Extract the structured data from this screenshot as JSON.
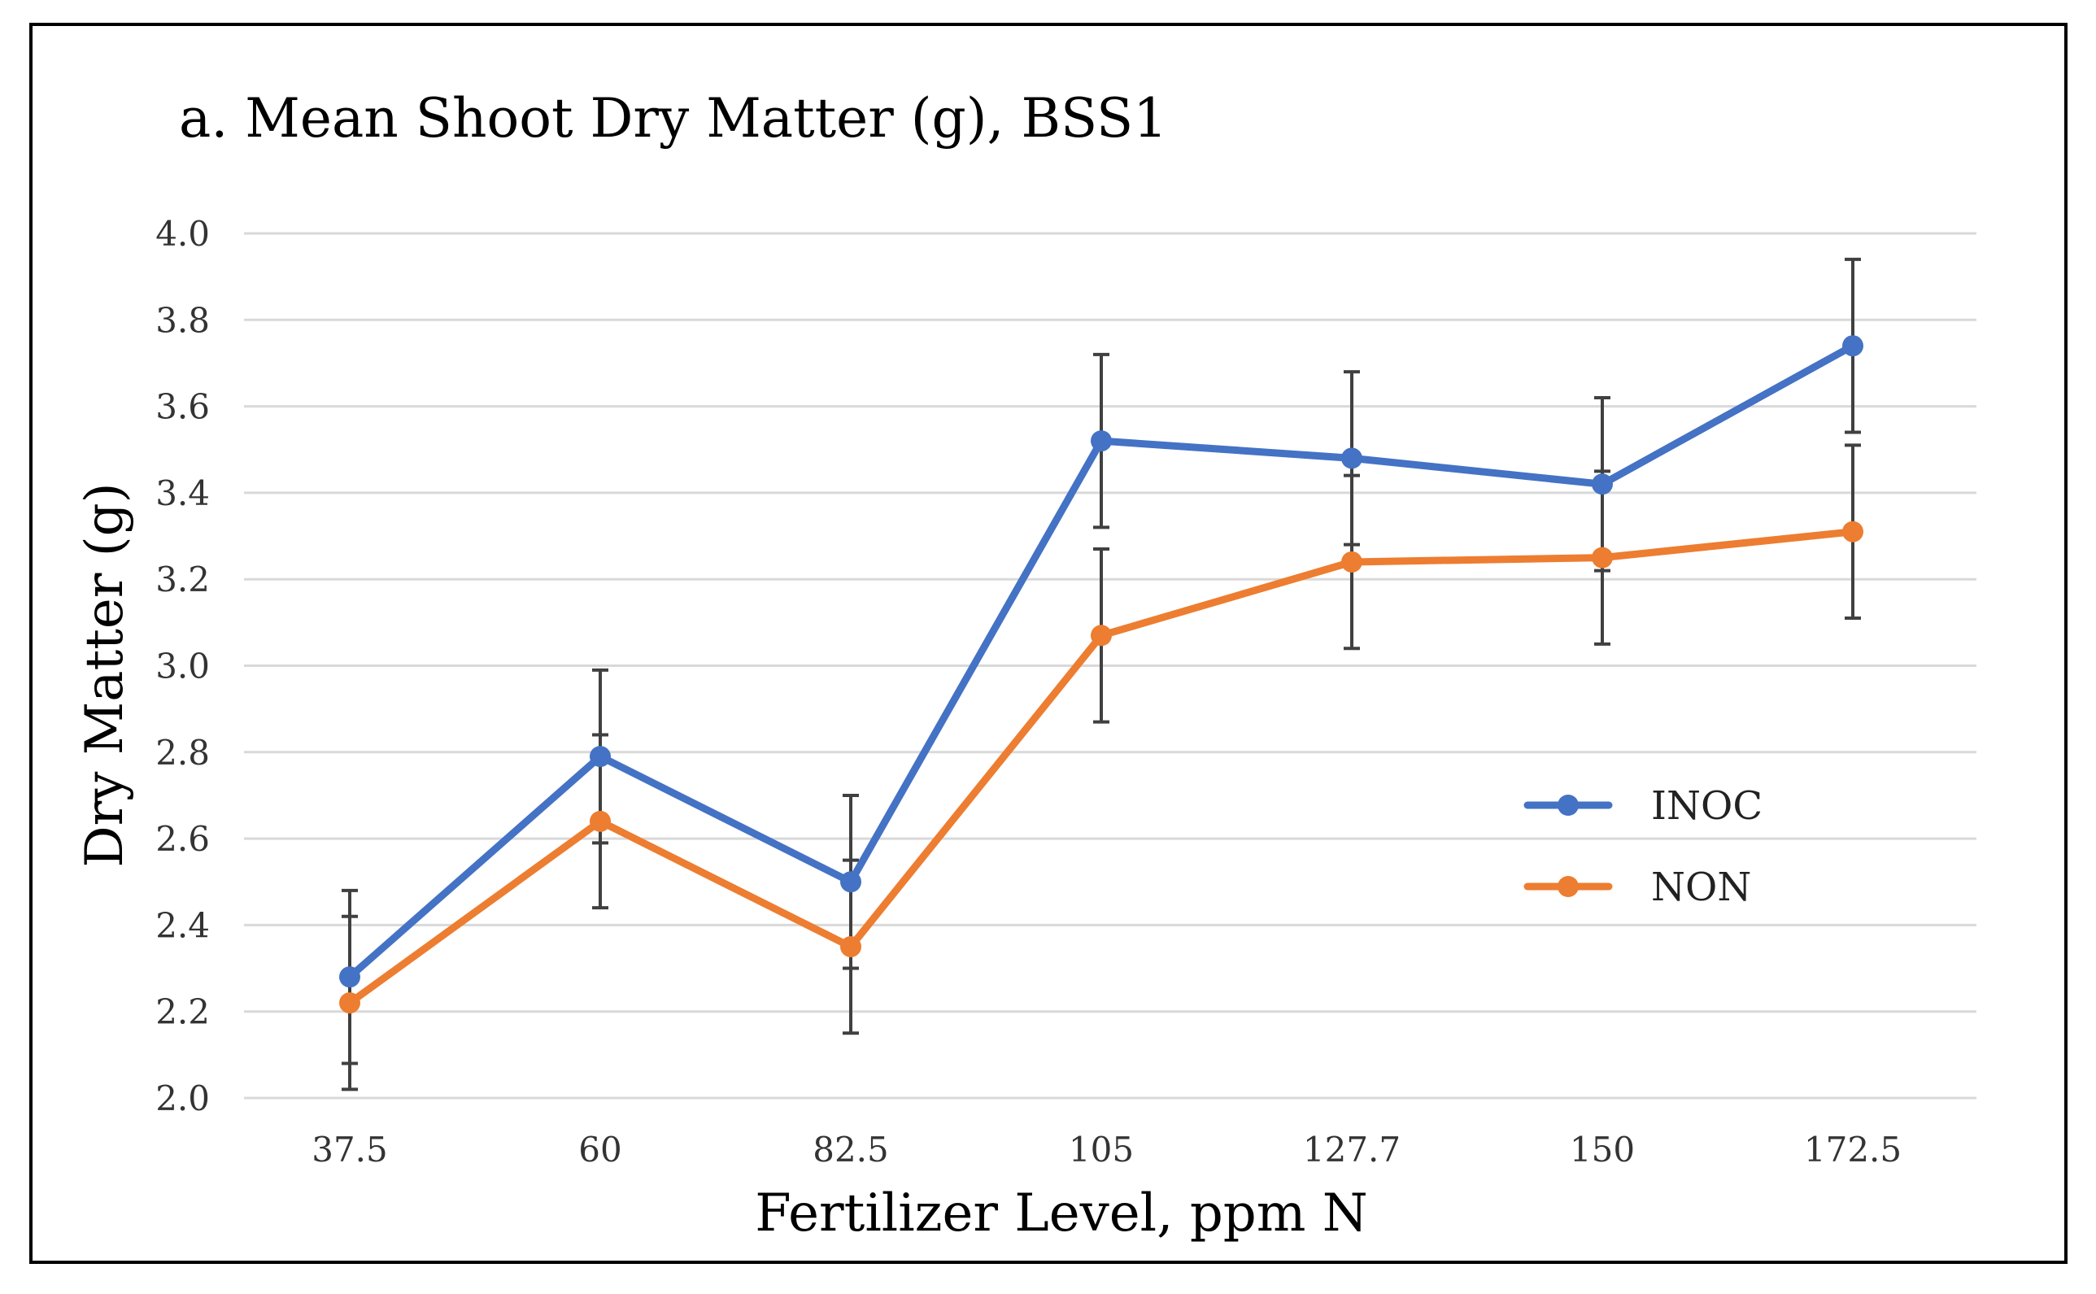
{
  "chart_data": {
    "type": "line",
    "title": "a. Mean Shoot Dry Matter (g), BSS1",
    "xlabel": "Fertilizer Level, ppm N",
    "ylabel": "Dry Matter (g)",
    "categories": [
      "37.5",
      "60",
      "82.5",
      "105",
      "127.7",
      "150",
      "172.5"
    ],
    "ylim": [
      2.0,
      4.0
    ],
    "yticks": [
      "2.0",
      "2.2",
      "2.4",
      "2.6",
      "2.8",
      "3.0",
      "3.2",
      "3.4",
      "3.6",
      "3.8",
      "4.0"
    ],
    "grid": true,
    "legend_position": "right-middle",
    "series": [
      {
        "name": "INOC",
        "color": "#4472C4",
        "values": [
          2.28,
          2.79,
          2.5,
          3.52,
          3.48,
          3.42,
          3.74
        ],
        "error": [
          0.2,
          0.2,
          0.2,
          0.2,
          0.2,
          0.2,
          0.2
        ]
      },
      {
        "name": "NON",
        "color": "#ED7D31",
        "values": [
          2.22,
          2.64,
          2.35,
          3.07,
          3.24,
          3.25,
          3.31
        ],
        "error": [
          0.2,
          0.2,
          0.2,
          0.2,
          0.2,
          0.2,
          0.2
        ]
      }
    ],
    "gridline_color": "#D9D9D9",
    "errorbar_color": "#404040"
  }
}
